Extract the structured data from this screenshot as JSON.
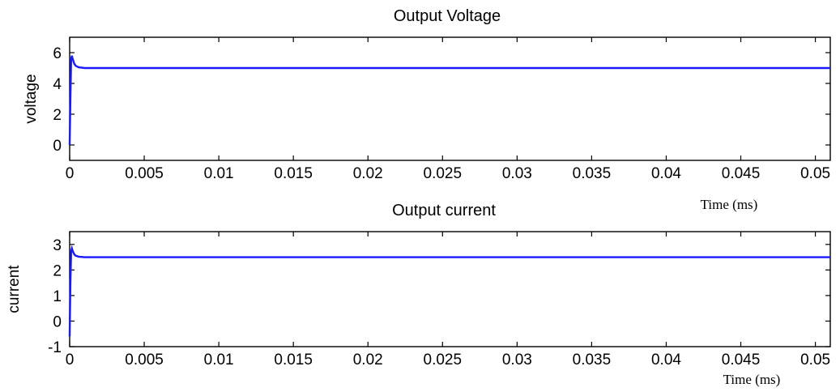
{
  "chart_data": [
    {
      "type": "line",
      "title": "Output Voltage",
      "ylabel": "voltage",
      "xlabel": "Time  (ms)",
      "xlim": [
        0,
        0.051
      ],
      "ylim": [
        -1,
        7
      ],
      "x_ticks": [
        0,
        0.005,
        0.01,
        0.015,
        0.02,
        0.025,
        0.03,
        0.035,
        0.04,
        0.045,
        0.05
      ],
      "x_tick_labels": [
        "0",
        "0.005",
        "0.01",
        "0.015",
        "0.02",
        "0.025",
        "0.03",
        "0.035",
        "0.04",
        "0.045",
        "0.05"
      ],
      "y_ticks": [
        0,
        2,
        4,
        6
      ],
      "y_tick_labels": [
        "0",
        "2",
        "4",
        "6"
      ],
      "grid": false,
      "color": "#1a1aff",
      "series": [
        {
          "x": [
            0,
            5e-05,
            0.0001,
            0.00015,
            0.0002,
            0.0003,
            0.0004,
            0.0006,
            0.001,
            0.002,
            0.051
          ],
          "y": [
            0,
            3.0,
            5.6,
            5.8,
            5.6,
            5.3,
            5.15,
            5.05,
            5.0,
            5.0,
            5.0
          ]
        }
      ]
    },
    {
      "type": "line",
      "title": "Output current",
      "ylabel": "current",
      "xlabel": "Time  (ms)",
      "xlim": [
        0,
        0.051
      ],
      "ylim": [
        -1,
        3.5
      ],
      "x_ticks": [
        0,
        0.005,
        0.01,
        0.015,
        0.02,
        0.025,
        0.03,
        0.035,
        0.04,
        0.045,
        0.05
      ],
      "x_tick_labels": [
        "0",
        "0.005",
        "0.01",
        "0.015",
        "0.02",
        "0.025",
        "0.03",
        "0.035",
        "0.04",
        "0.045",
        "0.05"
      ],
      "y_ticks": [
        -1,
        0,
        1,
        2,
        3
      ],
      "y_tick_labels": [
        "-1",
        "0",
        "1",
        "2",
        "3"
      ],
      "grid": false,
      "color": "#1a1aff",
      "series": [
        {
          "x": [
            0,
            5e-05,
            0.0001,
            0.00015,
            0.0002,
            0.0003,
            0.0004,
            0.0006,
            0.001,
            0.002,
            0.051
          ],
          "y": [
            -0.6,
            1.5,
            2.75,
            2.85,
            2.75,
            2.62,
            2.56,
            2.52,
            2.5,
            2.5,
            2.5
          ]
        }
      ]
    }
  ]
}
